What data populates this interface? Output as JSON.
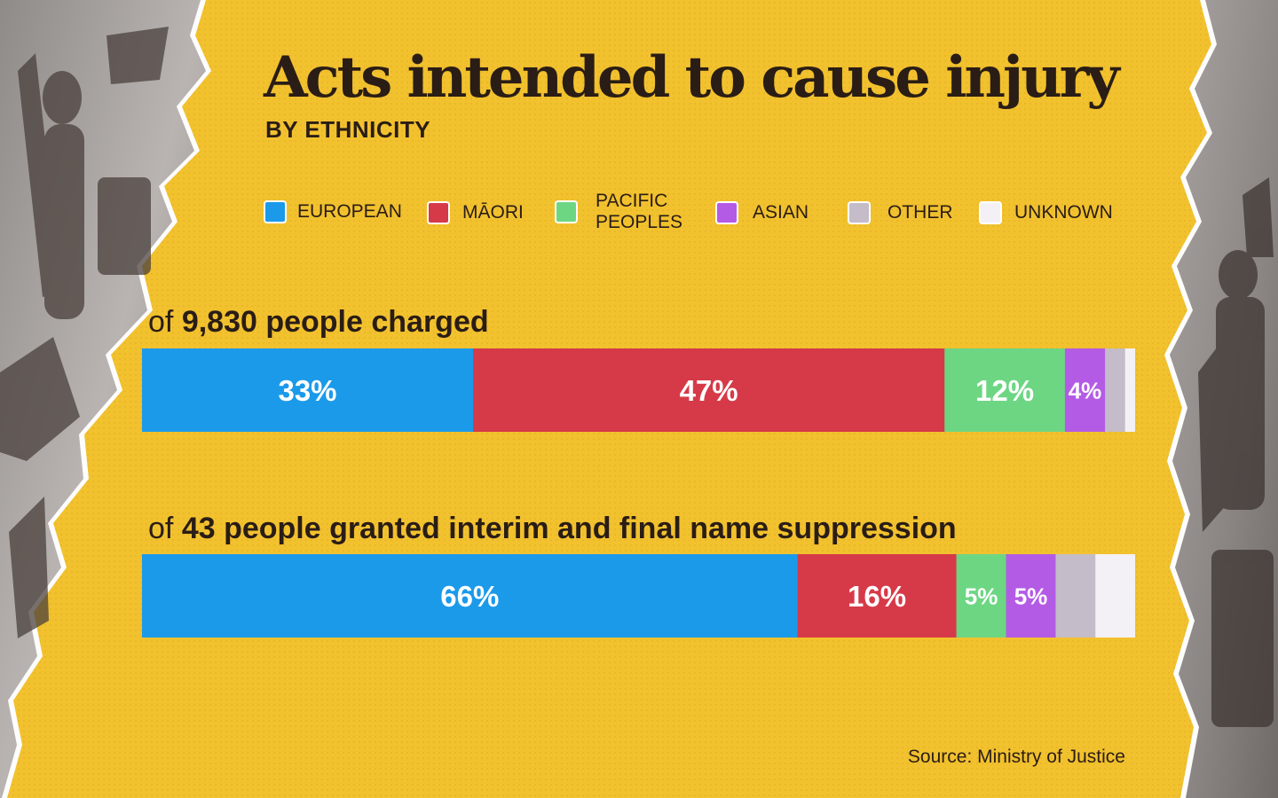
{
  "title": "Acts intended to cause injury",
  "subtitle": "BY ETHNICITY",
  "legend": [
    {
      "label": "EUROPEAN",
      "color": "#1b9aea"
    },
    {
      "label": "MĀORI",
      "color": "#d63a48"
    },
    {
      "label": "PACIFIC PEOPLES",
      "color": "#6dd683"
    },
    {
      "label": "ASIAN",
      "color": "#b45be6"
    },
    {
      "label": "OTHER",
      "color": "#c4bcc8"
    },
    {
      "label": "UNKNOWN",
      "color": "#f3f1f5"
    }
  ],
  "source": "Source: Ministry of Justice",
  "chart_data": [
    {
      "type": "bar",
      "stacked": "100%",
      "heading_prefix": "of",
      "heading_bold": "9,830 people charged",
      "categories": [
        "EUROPEAN",
        "MĀORI",
        "PACIFIC PEOPLES",
        "ASIAN",
        "OTHER",
        "UNKNOWN"
      ],
      "values": [
        33,
        47,
        12,
        4,
        2,
        1
      ],
      "labels": [
        "33%",
        "47%",
        "12%",
        "4%",
        "",
        ""
      ]
    },
    {
      "type": "bar",
      "stacked": "100%",
      "heading_prefix": "of",
      "heading_bold": "43 people granted interim and final name suppression",
      "categories": [
        "EUROPEAN",
        "MĀORI",
        "PACIFIC PEOPLES",
        "ASIAN",
        "OTHER",
        "UNKNOWN"
      ],
      "values": [
        66,
        16,
        5,
        5,
        4,
        4
      ],
      "labels": [
        "66%",
        "16%",
        "5%",
        "5%",
        "",
        ""
      ]
    }
  ]
}
